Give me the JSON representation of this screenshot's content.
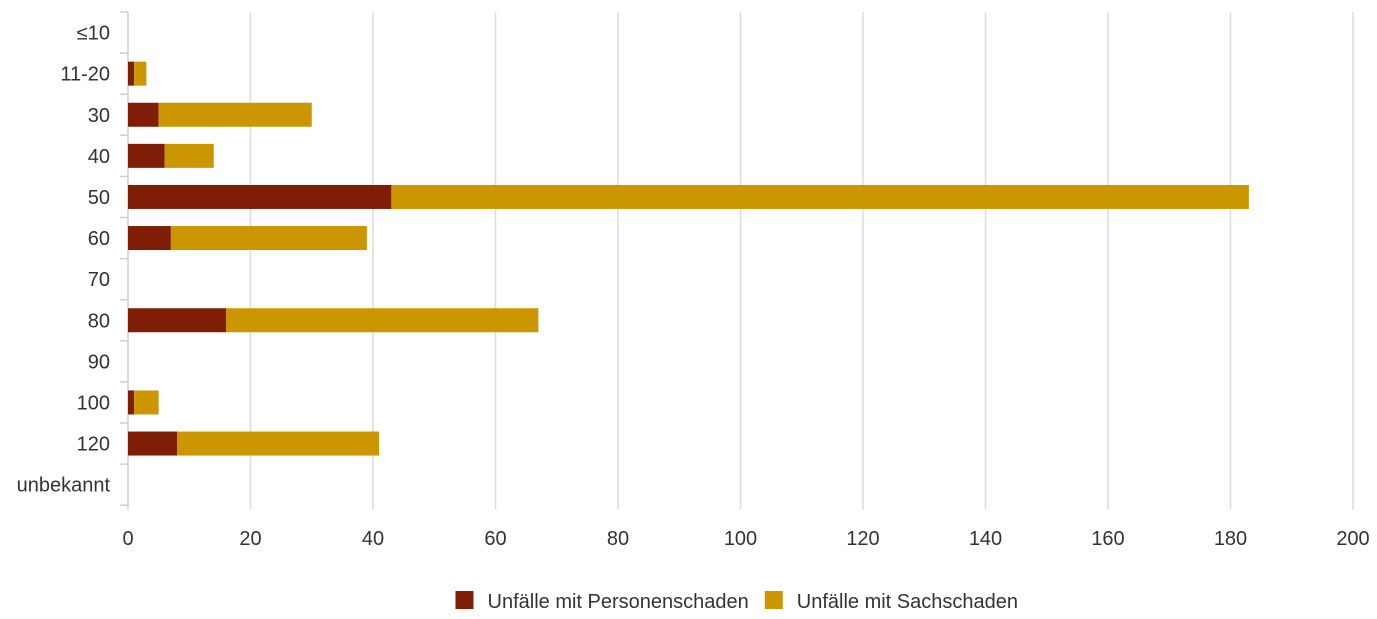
{
  "chart_data": {
    "type": "bar",
    "orientation": "horizontal",
    "stacked": true,
    "categories": [
      "≤10",
      "11-20",
      "30",
      "40",
      "50",
      "60",
      "70",
      "80",
      "90",
      "100",
      "120",
      "unbekannt"
    ],
    "series": [
      {
        "name": "Unfälle mit Personenschaden",
        "color": "#7f1d06",
        "values": [
          0,
          1,
          5,
          6,
          43,
          7,
          0,
          16,
          0,
          1,
          8,
          0
        ]
      },
      {
        "name": "Unfälle mit Sachschaden",
        "color": "#cc9600",
        "values": [
          0,
          2,
          25,
          8,
          140,
          32,
          0,
          51,
          0,
          4,
          33,
          0
        ]
      }
    ],
    "xlim": [
      0,
      200
    ],
    "x_ticks": [
      0,
      20,
      40,
      60,
      80,
      100,
      120,
      140,
      160,
      180,
      200
    ],
    "grid": "vertical",
    "legend_position": "bottom-center",
    "title": "",
    "xlabel": "",
    "ylabel": ""
  }
}
